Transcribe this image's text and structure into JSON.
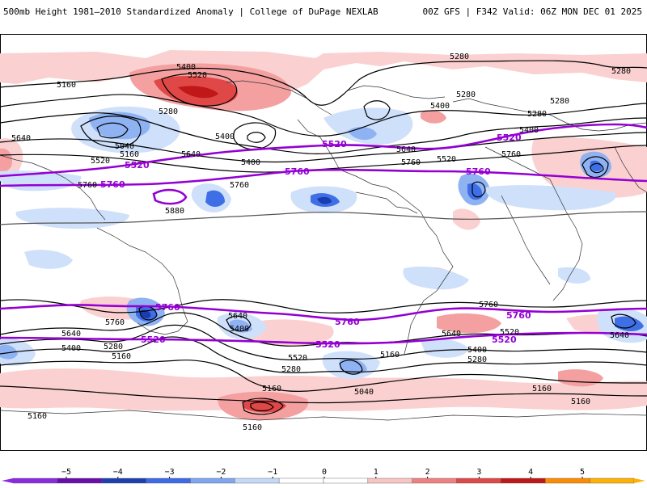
{
  "header": {
    "title_left": "500mb Height 1981—2010 Standardized Anomaly | College of DuPage NEXLAB",
    "title_right": "00Z GFS | F342 Valid: 06Z MON DEC 01 2025"
  },
  "map": {
    "contour_labels": [
      {
        "text": "5400",
        "bold": false
      },
      {
        "text": "5520",
        "bold": false
      },
      {
        "text": "5160",
        "bold": false
      },
      {
        "text": "5280",
        "bold": false
      },
      {
        "text": "5280",
        "bold": false
      },
      {
        "text": "5640",
        "bold": false
      },
      {
        "text": "5040",
        "bold": false
      },
      {
        "text": "5160",
        "bold": false
      },
      {
        "text": "5520",
        "bold": true
      },
      {
        "text": "5520",
        "bold": false
      },
      {
        "text": "5640",
        "bold": false
      },
      {
        "text": "5400",
        "bold": false
      },
      {
        "text": "5400",
        "bold": false
      },
      {
        "text": "5760",
        "bold": false
      },
      {
        "text": "5760",
        "bold": true
      },
      {
        "text": "5760",
        "bold": false
      },
      {
        "text": "5880",
        "bold": false
      },
      {
        "text": "5280",
        "bold": false
      },
      {
        "text": "5400",
        "bold": false
      },
      {
        "text": "5280",
        "bold": false
      },
      {
        "text": "5520",
        "bold": true
      },
      {
        "text": "5640",
        "bold": false
      },
      {
        "text": "5760",
        "bold": false
      },
      {
        "text": "5520",
        "bold": false
      },
      {
        "text": "5760",
        "bold": true
      },
      {
        "text": "5760",
        "bold": true
      },
      {
        "text": "5280",
        "bold": false
      },
      {
        "text": "5280",
        "bold": false
      },
      {
        "text": "5400",
        "bold": false
      },
      {
        "text": "5520",
        "bold": true
      },
      {
        "text": "5760",
        "bold": false
      },
      {
        "text": "5760",
        "bold": true
      },
      {
        "text": "5760",
        "bold": false
      },
      {
        "text": "5640",
        "bold": false
      },
      {
        "text": "5400",
        "bold": false
      },
      {
        "text": "5760",
        "bold": true
      },
      {
        "text": "5640",
        "bold": false
      },
      {
        "text": "5520",
        "bold": true
      },
      {
        "text": "5400",
        "bold": false
      },
      {
        "text": "5280",
        "bold": false
      },
      {
        "text": "5160",
        "bold": false
      },
      {
        "text": "5520",
        "bold": false
      },
      {
        "text": "5280",
        "bold": false
      },
      {
        "text": "5520",
        "bold": true
      },
      {
        "text": "5160",
        "bold": false
      },
      {
        "text": "5040",
        "bold": false
      },
      {
        "text": "5760",
        "bold": false
      },
      {
        "text": "5760",
        "bold": true
      },
      {
        "text": "5640",
        "bold": false
      },
      {
        "text": "5520",
        "bold": false
      },
      {
        "text": "5520",
        "bold": true
      },
      {
        "text": "5400",
        "bold": false
      },
      {
        "text": "5280",
        "bold": false
      },
      {
        "text": "5160",
        "bold": false
      },
      {
        "text": "5160",
        "bold": false
      },
      {
        "text": "5160",
        "bold": false
      },
      {
        "text": "5160",
        "bold": false
      },
      {
        "text": "5160",
        "bold": false
      },
      {
        "text": "5640",
        "bold": false
      }
    ]
  },
  "colorbar": {
    "ticks": [
      "−5",
      "−4",
      "−3",
      "−2",
      "−1",
      "0",
      "1",
      "2",
      "3",
      "4",
      "5"
    ],
    "colors": [
      "#8a2be2",
      "#6a0dad",
      "#1e3fb0",
      "#3b6be8",
      "#7fa6f0",
      "#c4d8f8",
      "#ffffff",
      "#ffffff",
      "#f8c4c4",
      "#f08080",
      "#e04848",
      "#c01818",
      "#ff8c00",
      "#ffb000"
    ]
  },
  "colors": {
    "positive_light": "#fbd0d0",
    "positive_mid": "#f4a0a0",
    "positive_strong": "#e04848",
    "positive_max": "#c01818",
    "negative_light": "#cfe0fb",
    "negative_mid": "#8fb3f2",
    "negative_strong": "#3f6fe6",
    "negative_max": "#1a3cb0",
    "bold_contour": "#9400d3",
    "contour": "#000000"
  }
}
